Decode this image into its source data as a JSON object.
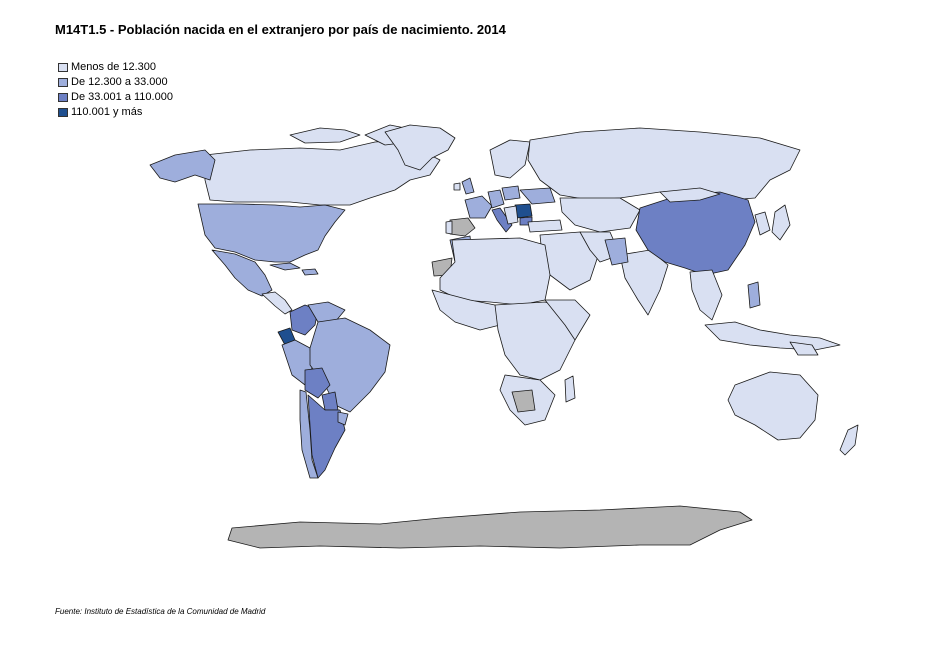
{
  "title": "M14T1.5 - Población nacida en el extranjero por país de nacimiento. 2014",
  "legend": [
    {
      "label": "Menos de 12.300",
      "color": "#d9e0f2"
    },
    {
      "label": "De 12.300 a 33.000",
      "color": "#9eaedc"
    },
    {
      "label": "De 33.001 a 110.000",
      "color": "#6d80c4"
    },
    {
      "label": "110.001 y más",
      "color": "#1f4f8f"
    }
  ],
  "no_data_color": "#b4b4b4",
  "ocean_color": "#ffffff",
  "source": "Fuente: Instituto de Estadística de la Comunidad de Madrid"
}
